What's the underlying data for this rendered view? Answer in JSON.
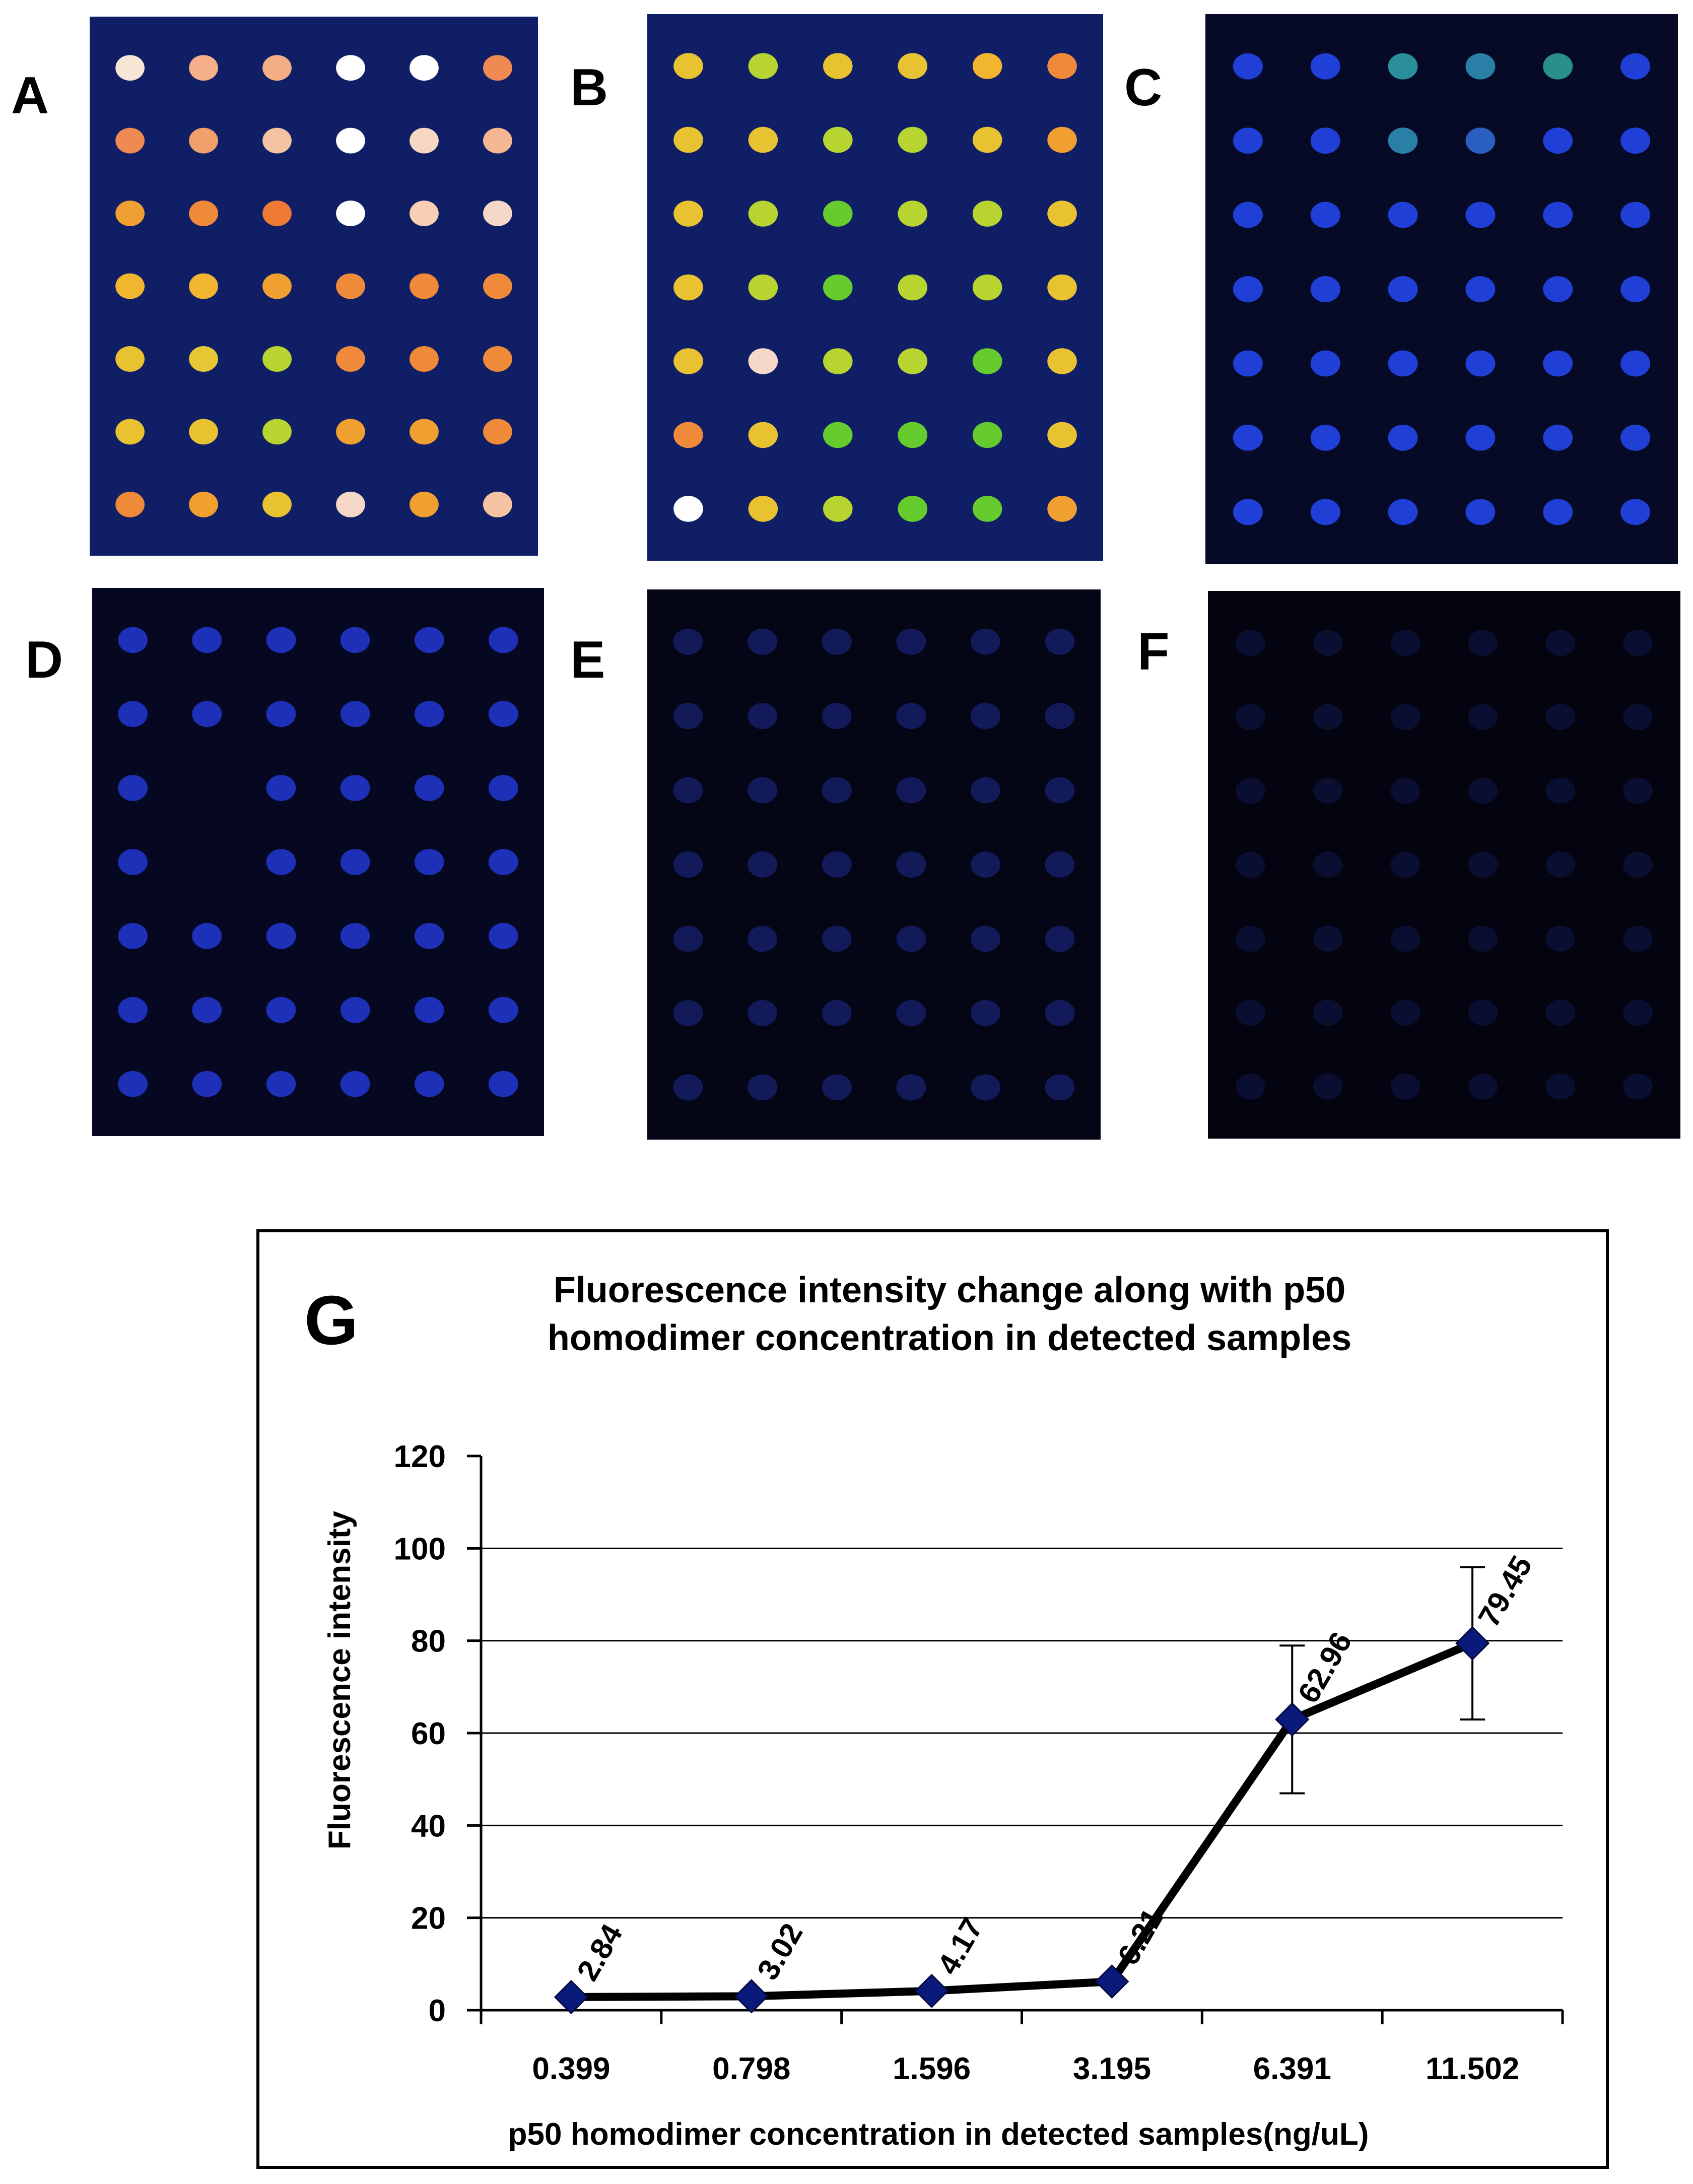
{
  "panels": [
    {
      "label": "A",
      "bg": "#101e66",
      "spot_colors": [
        [
          "#f6e6d6",
          "#f5b08a",
          "#f3ae86",
          "#ffffff",
          "#ffffff",
          "#ee8a52"
        ],
        [
          "#ee8a52",
          "#f0a06a",
          "#f4c4a2",
          "#ffffff",
          "#f6d8c2",
          "#f5b692"
        ],
        [
          "#f0a030",
          "#f08a3a",
          "#ee7a36",
          "#ffffff",
          "#f6cfb4",
          "#f6d8c8"
        ],
        [
          "#f2b530",
          "#f2b530",
          "#f0a030",
          "#ee8a3a",
          "#ee8a3a",
          "#ee8a3a"
        ],
        [
          "#e8c230",
          "#e6c834",
          "#b8d430",
          "#ee8a3a",
          "#ee8a3a",
          "#ee8a3a"
        ],
        [
          "#e8c230",
          "#e8c230",
          "#b8d430",
          "#f0a030",
          "#f0a030",
          "#ee8a3a"
        ],
        [
          "#ee8a3a",
          "#f0a030",
          "#e8c230",
          "#f6d8c8",
          "#f0a030",
          "#f4c4a2"
        ]
      ]
    },
    {
      "label": "B",
      "bg": "#101e66",
      "spot_colors": [
        [
          "#e8c230",
          "#b8d430",
          "#e8c230",
          "#e8c230",
          "#f2b530",
          "#ee8a3a"
        ],
        [
          "#e8c230",
          "#e8c230",
          "#b8d430",
          "#b8d430",
          "#e8c230",
          "#f0a030"
        ],
        [
          "#e8c230",
          "#b8d430",
          "#66cc2e",
          "#b8d430",
          "#b8d430",
          "#e8c230"
        ],
        [
          "#e8c230",
          "#b8d430",
          "#66cc2e",
          "#b8d430",
          "#b8d430",
          "#e8c230"
        ],
        [
          "#e8c230",
          "#f6d8c8",
          "#b8d430",
          "#b8d430",
          "#66cc2e",
          "#e8c230"
        ],
        [
          "#ee8a3a",
          "#e8c230",
          "#66cc2e",
          "#66cc2e",
          "#66cc2e",
          "#e8c230"
        ],
        [
          "#ffffff",
          "#e8c230",
          "#b8d430",
          "#66cc2e",
          "#66cc2e",
          "#f0a030"
        ]
      ]
    },
    {
      "label": "C",
      "bg": "#060a26",
      "spot_colors": [
        [
          "#1f3fd6",
          "#1f3fd6",
          "#2a8f9a",
          "#2a7fa6",
          "#2a8f8a",
          "#1f3fd6"
        ],
        [
          "#1f3fd6",
          "#1f3fd6",
          "#2a7fa6",
          "#2a5fc0",
          "#1f3fd6",
          "#1f3fd6"
        ],
        [
          "#1f3fd6",
          "#1f3fd6",
          "#1f3fd6",
          "#1f3fd6",
          "#1f3fd6",
          "#1f3fd6"
        ],
        [
          "#1f3fd6",
          "#1f3fd6",
          "#1f3fd6",
          "#1f3fd6",
          "#1f3fd6",
          "#1f3fd6"
        ],
        [
          "#1f3fd6",
          "#1f3fd6",
          "#1f3fd6",
          "#1f3fd6",
          "#1f3fd6",
          "#1f3fd6"
        ],
        [
          "#1f3fd6",
          "#1f3fd6",
          "#1f3fd6",
          "#1f3fd6",
          "#1f3fd6",
          "#1f3fd6"
        ],
        [
          "#1f3fd6",
          "#1f3fd6",
          "#1f3fd6",
          "#1f3fd6",
          "#1f3fd6",
          "#1f3fd6"
        ]
      ]
    },
    {
      "label": "D",
      "bg": "#050820",
      "spot_colors": [
        [
          "#1e2fb8",
          "#1e2fb8",
          "#1e2fb8",
          "#1e2fb8",
          "#1e2fb8",
          "#1e2fb8"
        ],
        [
          "#1e2fb8",
          "#1e2fb8",
          "#1e2fb8",
          "#1e2fb8",
          "#1e2fb8",
          "#1e2fb8"
        ],
        [
          "#1e2fb8",
          "#050820",
          "#1e2fb8",
          "#1e2fb8",
          "#1e2fb8",
          "#1e2fb8"
        ],
        [
          "#1e2fb8",
          "#050820",
          "#1e2fb8",
          "#1e2fb8",
          "#1e2fb8",
          "#1e2fb8"
        ],
        [
          "#1e2fb8",
          "#1e2fb8",
          "#1e2fb8",
          "#1e2fb8",
          "#1e2fb8",
          "#1e2fb8"
        ],
        [
          "#1e2fb8",
          "#1e2fb8",
          "#1e2fb8",
          "#1e2fb8",
          "#1e2fb8",
          "#1e2fb8"
        ],
        [
          "#1e2fb8",
          "#1e2fb8",
          "#1e2fb8",
          "#1e2fb8",
          "#1e2fb8",
          "#1e2fb8"
        ]
      ]
    },
    {
      "label": "E",
      "bg": "#040616",
      "spot_colors": [
        [
          "#121a5a",
          "#121a5a",
          "#121a5a",
          "#121a5a",
          "#121a5a",
          "#121a5a"
        ],
        [
          "#121a5a",
          "#121a5a",
          "#121a5a",
          "#121a5a",
          "#121a5a",
          "#121a5a"
        ],
        [
          "#121a5a",
          "#121a5a",
          "#121a5a",
          "#121a5a",
          "#121a5a",
          "#121a5a"
        ],
        [
          "#121a5a",
          "#121a5a",
          "#121a5a",
          "#121a5a",
          "#121a5a",
          "#121a5a"
        ],
        [
          "#121a5a",
          "#121a5a",
          "#121a5a",
          "#121a5a",
          "#121a5a",
          "#121a5a"
        ],
        [
          "#121a5a",
          "#121a5a",
          "#121a5a",
          "#121a5a",
          "#121a5a",
          "#121a5a"
        ],
        [
          "#121a5a",
          "#121a5a",
          "#121a5a",
          "#121a5a",
          "#121a5a",
          "#121a5a"
        ]
      ]
    },
    {
      "label": "F",
      "bg": "#03040f",
      "spot_colors": [
        [
          "#0a0e30",
          "#0a0e30",
          "#0a0e30",
          "#0a0e30",
          "#0a0e30",
          "#0a0e30"
        ],
        [
          "#0a0e30",
          "#0a0e30",
          "#0a0e30",
          "#0a0e30",
          "#0a0e30",
          "#0a0e30"
        ],
        [
          "#0a0e30",
          "#0a0e30",
          "#0a0e30",
          "#0a0e30",
          "#0a0e30",
          "#0a0e30"
        ],
        [
          "#0a0e30",
          "#0a0e30",
          "#0a0e30",
          "#0a0e30",
          "#0a0e30",
          "#0a0e30"
        ],
        [
          "#0a0e30",
          "#0a0e30",
          "#0a0e30",
          "#0a0e30",
          "#0a0e30",
          "#0a0e30"
        ],
        [
          "#0a0e30",
          "#0a0e30",
          "#0a0e30",
          "#0a0e30",
          "#0a0e30",
          "#0a0e30"
        ],
        [
          "#0a0e30",
          "#0a0e30",
          "#0a0e30",
          "#0a0e30",
          "#0a0e30",
          "#0a0e30"
        ]
      ]
    }
  ],
  "chart_label": "G",
  "chart_data": {
    "type": "line",
    "title_lines": [
      "Fluorescence intensity change along with p50",
      "homodimer concentration in detected samples"
    ],
    "xlabel": "p50 homodimer concentration in detected samples(ng/uL)",
    "ylabel": "Fluorescence intensity",
    "categories": [
      "0.399",
      "0.798",
      "1.596",
      "3.195",
      "6.391",
      "11.502"
    ],
    "values": [
      2.84,
      3.02,
      4.17,
      6.21,
      62.96,
      79.45
    ],
    "data_labels": [
      "2.84",
      "3.02",
      "4.17",
      "6.21",
      "62.96",
      "79.45"
    ],
    "errors": [
      0,
      0,
      0,
      0,
      16,
      16.5
    ],
    "ylim": [
      0,
      120
    ],
    "yticks": [
      0,
      20,
      40,
      60,
      80,
      100,
      120
    ],
    "gridlines": [
      20,
      40,
      60,
      80,
      100
    ],
    "line_color": "#000000",
    "marker_color": "#0a1a7a"
  }
}
